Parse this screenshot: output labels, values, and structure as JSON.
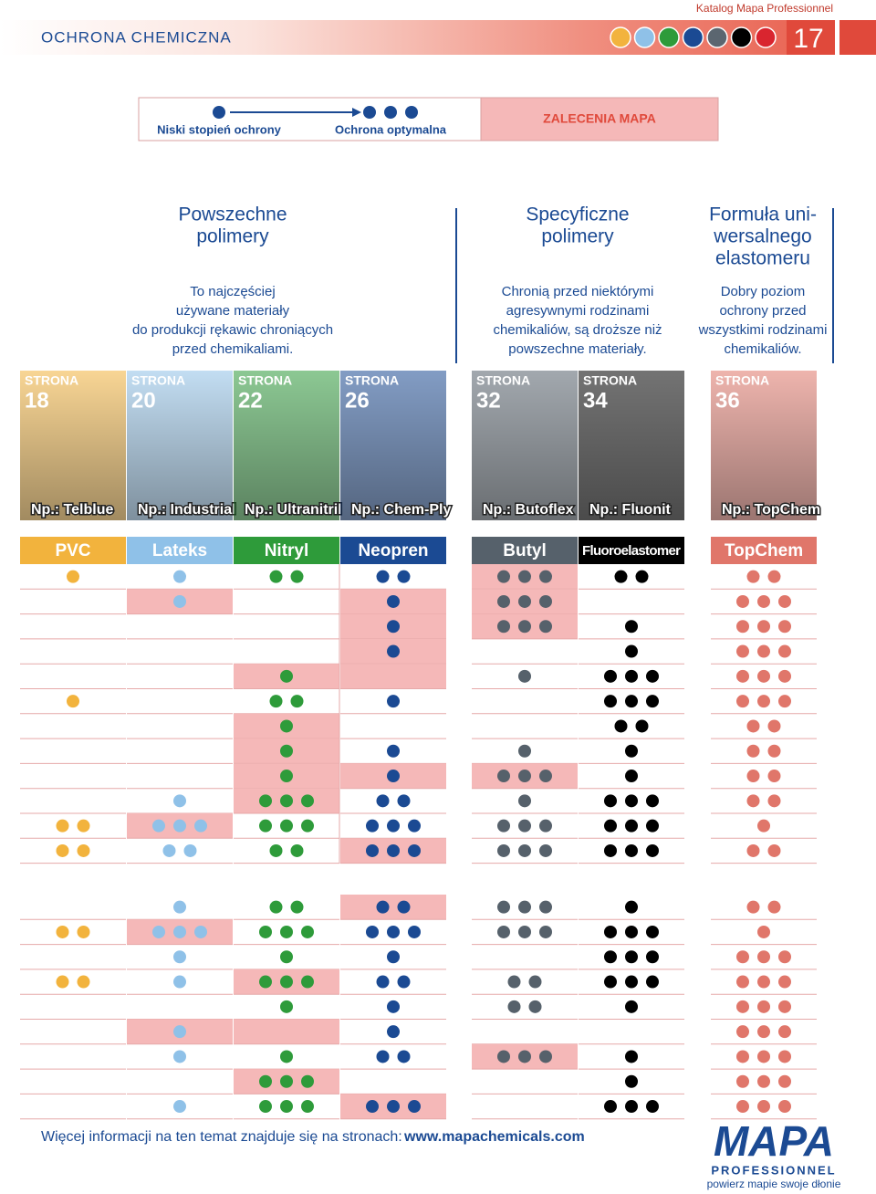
{
  "header": {
    "catalog": "Katalog Mapa Professionnel",
    "section": "OCHRONA CHEMICZNA",
    "page": "17",
    "colors": [
      "#f2b33d",
      "#8fc1e8",
      "#2e9b3a",
      "#1b4a93",
      "#5b6670",
      "#000000",
      "#d9252f"
    ]
  },
  "legend": {
    "low": "Niski stopień ochrony",
    "optimal": "Ochrona optymalna",
    "recommendation": "ZALECENIA MAPA"
  },
  "groups": [
    {
      "title": [
        "Powszechne",
        "polimery"
      ],
      "description": [
        "To najczęściej",
        "używane materiały",
        "do produkcji rękawic chroniących",
        "przed chemikaliami."
      ]
    },
    {
      "title": [
        "Specyficzne",
        "polimery"
      ],
      "description": [
        "Chronią przed niektórymi",
        "agresywnymi rodzinami",
        "chemikaliów, są droższe niż",
        "powszechne materiały."
      ]
    },
    {
      "title": [
        "Formuła uni-",
        "wersalnego",
        "elastomeru"
      ],
      "description": [
        "Dobry poziom",
        "ochrony przed",
        "wszystkimi rodzinami",
        "chemikaliów."
      ]
    }
  ],
  "table": {
    "page_label": "STRONA",
    "columns": [
      {
        "name": "PVC",
        "page": "18",
        "example": "Np.: Telblue",
        "color": "#f2b33d"
      },
      {
        "name": "Lateks",
        "page": "20",
        "example": "Np.: Industrial",
        "color": "#8fc1e8"
      },
      {
        "name": "Nitryl",
        "page": "22",
        "example": "Np.: Ultranitril",
        "color": "#2e9b3a"
      },
      {
        "name": "Neopren",
        "page": "26",
        "example": "Np.: Chem-Ply",
        "color": "#1b4a93"
      },
      {
        "name": "Butyl",
        "page": "32",
        "example": "Np.: Butoflex",
        "color": "#56616b"
      },
      {
        "name": "Fluoroelastomer",
        "page": "34",
        "example": "Np.: Fluonit",
        "color": "#000000"
      },
      {
        "name": "TopChem",
        "page": "36",
        "example": "Np.: TopChem",
        "color": "#e0766a"
      }
    ],
    "highlight_color": "#f5b8b8",
    "blocks": [
      {
        "rows": [
          {
            "levels": [
              1,
              1,
              2,
              2,
              3,
              2,
              2
            ],
            "highlight": [
              4
            ]
          },
          {
            "levels": [
              0,
              1,
              0,
              1,
              3,
              0,
              3
            ],
            "highlight": [
              1,
              3,
              4
            ]
          },
          {
            "levels": [
              0,
              0,
              0,
              1,
              3,
              1,
              3
            ],
            "highlight": [
              3,
              4
            ]
          },
          {
            "levels": [
              0,
              0,
              0,
              1,
              0,
              1,
              3
            ],
            "highlight": [
              3
            ]
          },
          {
            "levels": [
              0,
              0,
              1,
              0,
              1,
              3,
              3
            ],
            "highlight": [
              2,
              3
            ]
          },
          {
            "levels": [
              1,
              0,
              2,
              1,
              0,
              3,
              3
            ],
            "highlight": []
          },
          {
            "levels": [
              0,
              0,
              1,
              0,
              0,
              2,
              2
            ],
            "highlight": [
              2
            ]
          },
          {
            "levels": [
              0,
              0,
              1,
              1,
              1,
              1,
              2
            ],
            "highlight": [
              2
            ]
          },
          {
            "levels": [
              0,
              0,
              1,
              1,
              3,
              1,
              2
            ],
            "highlight": [
              2,
              3,
              4
            ]
          },
          {
            "levels": [
              0,
              1,
              3,
              2,
              1,
              3,
              2
            ],
            "highlight": [
              2
            ]
          },
          {
            "levels": [
              2,
              3,
              3,
              3,
              3,
              3,
              1
            ],
            "highlight": [
              1
            ]
          },
          {
            "levels": [
              2,
              2,
              2,
              3,
              3,
              3,
              2
            ],
            "highlight": [
              3
            ]
          }
        ]
      },
      {
        "rows": [
          {
            "levels": [
              0,
              1,
              2,
              2,
              3,
              1,
              2
            ],
            "highlight": [
              3
            ]
          },
          {
            "levels": [
              2,
              3,
              3,
              3,
              3,
              3,
              1
            ],
            "highlight": [
              1
            ]
          },
          {
            "levels": [
              0,
              1,
              1,
              1,
              0,
              3,
              3
            ],
            "highlight": []
          },
          {
            "levels": [
              2,
              1,
              3,
              2,
              2,
              3,
              3
            ],
            "highlight": [
              2
            ]
          },
          {
            "levels": [
              0,
              0,
              1,
              1,
              2,
              1,
              3
            ],
            "highlight": []
          },
          {
            "levels": [
              0,
              1,
              0,
              1,
              0,
              0,
              3
            ],
            "highlight": [
              1,
              2
            ]
          },
          {
            "levels": [
              0,
              1,
              1,
              2,
              3,
              1,
              3
            ],
            "highlight": [
              4
            ]
          },
          {
            "levels": [
              0,
              0,
              3,
              0,
              0,
              1,
              3
            ],
            "highlight": [
              2
            ]
          },
          {
            "levels": [
              0,
              1,
              3,
              3,
              0,
              3,
              3
            ],
            "highlight": [
              3
            ]
          }
        ]
      }
    ]
  },
  "footer": {
    "text": "Więcej informacji na ten temat znajduje się na stronach:",
    "link": "www.mapachemicals.com",
    "brand": "MAPA",
    "brand_sub": "PROFESSIONNEL",
    "slogan": "powierz mapie swoje dłonie"
  }
}
